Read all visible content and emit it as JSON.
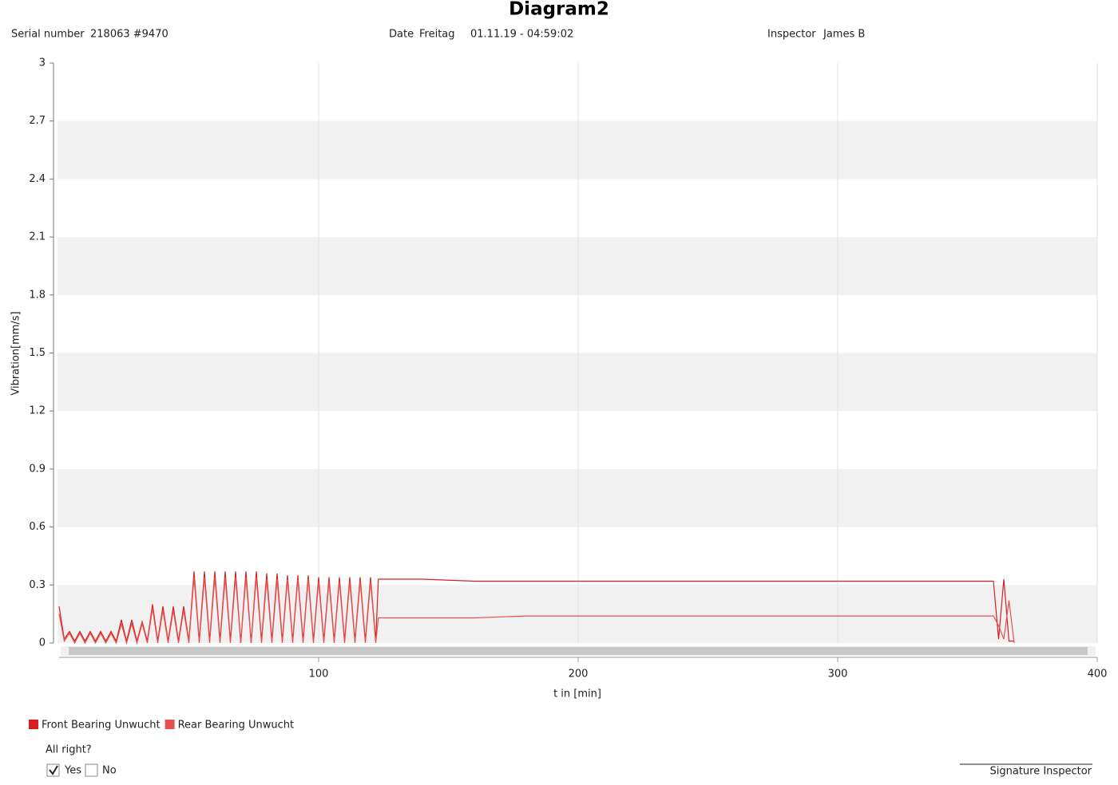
{
  "header": {
    "serial_label": "Serial number",
    "serial": "218063 #9470",
    "date_label": "Date",
    "day": "Freitag",
    "datetime": "01.11.19 - 04:59:02",
    "inspector_label": "Inspector",
    "inspector": "James B"
  },
  "chart_data": {
    "type": "line",
    "title": "Diagram2",
    "x_label": "t in [min]",
    "y_label": "Vibration[mm/s]",
    "x": [
      0,
      2,
      4,
      6,
      8,
      10,
      12,
      14,
      16,
      18,
      20,
      22,
      24,
      26,
      28,
      30,
      32,
      34,
      36,
      38,
      40,
      42,
      44,
      46,
      48,
      50,
      52,
      54,
      56,
      58,
      60,
      62,
      64,
      66,
      68,
      70,
      72,
      74,
      76,
      78,
      80,
      82,
      84,
      86,
      88,
      90,
      92,
      94,
      96,
      98,
      100,
      102,
      104,
      106,
      108,
      110,
      112,
      114,
      116,
      118,
      120,
      122,
      123,
      140,
      160,
      180,
      200,
      220,
      240,
      260,
      280,
      300,
      320,
      340,
      360,
      362,
      364,
      366,
      368
    ],
    "series": [
      {
        "name": "Front Bearing Unwucht",
        "color": "#d71e1e",
        "values": [
          0.19,
          0.02,
          0.06,
          0.01,
          0.06,
          0.01,
          0.06,
          0.01,
          0.06,
          0.01,
          0.06,
          0.01,
          0.12,
          0.01,
          0.12,
          0.01,
          0.11,
          0.01,
          0.2,
          0.01,
          0.19,
          0.01,
          0.19,
          0.01,
          0.19,
          0.01,
          0.37,
          0.01,
          0.37,
          0.01,
          0.37,
          0.01,
          0.37,
          0.01,
          0.37,
          0,
          0.37,
          0,
          0.37,
          0.01,
          0.36,
          0.01,
          0.36,
          0.01,
          0.35,
          0.01,
          0.35,
          0.01,
          0.35,
          0.01,
          0.34,
          0.01,
          0.34,
          0.01,
          0.34,
          0.01,
          0.34,
          0.01,
          0.34,
          0.01,
          0.34,
          0.01,
          0.33,
          0.33,
          0.32,
          0.32,
          0.32,
          0.32,
          0.32,
          0.32,
          0.32,
          0.32,
          0.32,
          0.32,
          0.32,
          0.02,
          0.33,
          0.01,
          0.01
        ]
      },
      {
        "name": "Rear Bearing Unwucht",
        "color": "#e8504f",
        "values": [
          0.15,
          0.01,
          0.05,
          0,
          0.05,
          0,
          0.05,
          0,
          0.05,
          0,
          0.05,
          0,
          0.1,
          0,
          0.1,
          0,
          0.1,
          0,
          0.18,
          0,
          0.17,
          0,
          0.17,
          0,
          0.17,
          0,
          0.34,
          0,
          0.34,
          0,
          0.34,
          0,
          0.34,
          0,
          0.34,
          0,
          0.34,
          0,
          0.34,
          0,
          0.33,
          0,
          0.33,
          0,
          0.33,
          0,
          0.33,
          0,
          0.33,
          0,
          0.32,
          0,
          0.32,
          0,
          0.32,
          0,
          0.32,
          0,
          0.32,
          0,
          0.32,
          0,
          0.13,
          0.13,
          0.13,
          0.14,
          0.14,
          0.14,
          0.14,
          0.14,
          0.14,
          0.14,
          0.14,
          0.14,
          0.14,
          0.09,
          0.02,
          0.22,
          0
        ]
      }
    ],
    "xlim": [
      0,
      400
    ],
    "xticks": [
      100,
      200,
      300,
      400
    ],
    "ylim": [
      0,
      3
    ],
    "yticks": [
      0,
      0.3,
      0.6,
      0.9,
      1.2,
      1.5,
      1.8,
      2.1,
      2.4,
      2.7,
      3
    ],
    "grid": true,
    "banded": true
  },
  "footer": {
    "question": "All right?",
    "yes": "Yes",
    "yes_checked": true,
    "no": "No",
    "no_checked": false,
    "signature": "Signature Inspector"
  }
}
